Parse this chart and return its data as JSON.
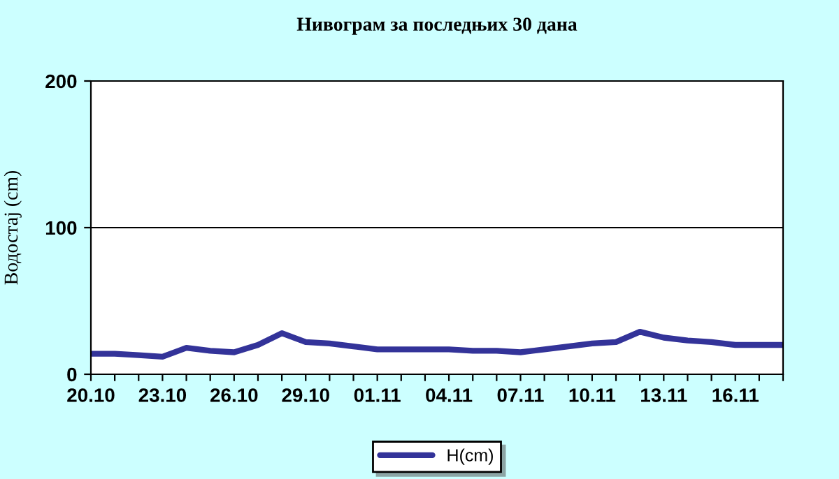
{
  "chart_data": {
    "type": "line",
    "title": "Нивограм за последњих 30 дана",
    "ylabel": "Водостај (cm)",
    "categories": [
      "20.10",
      null,
      null,
      "23.10",
      null,
      null,
      "26.10",
      null,
      null,
      "29.10",
      null,
      null,
      "01.11",
      null,
      null,
      "04.11",
      null,
      null,
      "07.11",
      null,
      null,
      "10.11",
      null,
      null,
      "13.11",
      null,
      null,
      "16.11",
      null,
      null
    ],
    "series": [
      {
        "name": "H(cm)",
        "color": "#333399",
        "values": [
          14,
          14,
          13,
          12,
          18,
          16,
          15,
          20,
          28,
          22,
          21,
          19,
          17,
          17,
          17,
          17,
          16,
          16,
          15,
          17,
          19,
          21,
          22,
          29,
          25,
          23,
          22,
          20,
          20,
          20
        ]
      }
    ],
    "ylim": [
      0,
      200
    ],
    "yticks": [
      0,
      100,
      200
    ],
    "grid": "y",
    "legend": "bottom",
    "marker": "none",
    "line_style": "solid"
  }
}
